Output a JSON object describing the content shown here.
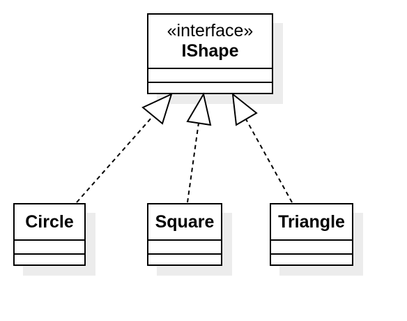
{
  "interface": {
    "stereotype": "«interface»",
    "name": "IShape"
  },
  "classes": [
    {
      "name": "Circle"
    },
    {
      "name": "Square"
    },
    {
      "name": "Triangle"
    }
  ],
  "relationships": [
    {
      "from": "Circle",
      "to": "IShape",
      "type": "realization"
    },
    {
      "from": "Square",
      "to": "IShape",
      "type": "realization"
    },
    {
      "from": "Triangle",
      "to": "IShape",
      "type": "realization"
    }
  ]
}
